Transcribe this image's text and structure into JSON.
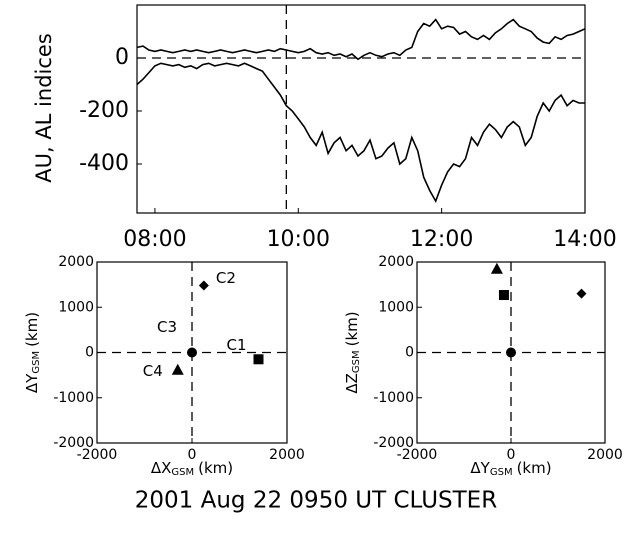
{
  "caption": "2001 Aug 22 0950 UT CLUSTER",
  "chart_data": [
    {
      "type": "line",
      "ylabel": "AU, AL indices",
      "xlim": [
        465,
        840
      ],
      "xticks": [
        {
          "value": 480,
          "label": "08:00"
        },
        {
          "value": 600,
          "label": "10:00"
        },
        {
          "value": 720,
          "label": "12:00"
        },
        {
          "value": 840,
          "label": "14:00"
        }
      ],
      "ylim": [
        -585,
        200
      ],
      "yticks": [
        -400,
        -200,
        0
      ],
      "hline": 0,
      "vline": 590,
      "x": [
        465,
        470,
        475,
        480,
        485,
        490,
        495,
        500,
        505,
        510,
        515,
        520,
        525,
        530,
        535,
        540,
        545,
        550,
        555,
        560,
        565,
        570,
        575,
        580,
        585,
        590,
        595,
        600,
        605,
        610,
        615,
        620,
        625,
        630,
        635,
        640,
        645,
        650,
        655,
        660,
        665,
        670,
        675,
        680,
        685,
        690,
        695,
        700,
        705,
        710,
        715,
        720,
        725,
        730,
        735,
        740,
        745,
        750,
        755,
        760,
        765,
        770,
        775,
        780,
        785,
        790,
        795,
        800,
        805,
        810,
        815,
        820,
        825,
        830,
        835,
        840
      ],
      "series": [
        {
          "color": "#000000",
          "values": [
            40,
            45,
            30,
            25,
            30,
            25,
            20,
            25,
            30,
            25,
            30,
            25,
            20,
            25,
            30,
            25,
            20,
            25,
            30,
            25,
            20,
            25,
            30,
            25,
            35,
            30,
            25,
            20,
            25,
            35,
            20,
            15,
            20,
            10,
            15,
            5,
            15,
            -5,
            10,
            20,
            10,
            5,
            15,
            20,
            10,
            30,
            40,
            100,
            130,
            120,
            145,
            110,
            120,
            115,
            90,
            100,
            80,
            70,
            85,
            70,
            95,
            110,
            130,
            145,
            120,
            110,
            100,
            75,
            60,
            55,
            80,
            70,
            85,
            90,
            100,
            110
          ]
        },
        {
          "color": "#000000",
          "values": [
            -100,
            -80,
            -55,
            -30,
            -20,
            -25,
            -30,
            -25,
            -35,
            -30,
            -40,
            -25,
            -20,
            -30,
            -25,
            -20,
            -25,
            -30,
            -20,
            -30,
            -40,
            -50,
            -80,
            -110,
            -140,
            -180,
            -200,
            -230,
            -260,
            -300,
            -330,
            -280,
            -360,
            -320,
            -300,
            -350,
            -330,
            -370,
            -350,
            -310,
            -380,
            -370,
            -340,
            -320,
            -400,
            -380,
            -300,
            -350,
            -450,
            -500,
            -540,
            -480,
            -430,
            -400,
            -410,
            -380,
            -300,
            -330,
            -280,
            -250,
            -270,
            -300,
            -260,
            -240,
            -260,
            -330,
            -300,
            -220,
            -170,
            -200,
            -160,
            -140,
            -180,
            -160,
            -170,
            -170
          ]
        }
      ]
    },
    {
      "type": "scatter",
      "xlabel": [
        "ΔX",
        "GSM",
        "(km)"
      ],
      "ylabel": [
        "ΔY",
        "GSM",
        "(km)"
      ],
      "xlim": [
        -2000,
        2000
      ],
      "xticks": [
        -2000,
        0,
        2000
      ],
      "ylim": [
        -2000,
        2000
      ],
      "yticks": [
        -2000,
        -1000,
        0,
        1000,
        2000
      ],
      "dashed_zero_lines": true,
      "point_labels": true,
      "series": [
        {
          "name": "C1",
          "marker": "square",
          "color": "#000000",
          "x": [
            1400
          ],
          "values": [
            -150
          ]
        },
        {
          "name": "C2",
          "marker": "diamond",
          "color": "#000000",
          "x": [
            250
          ],
          "values": [
            1480
          ]
        },
        {
          "name": "C3",
          "marker": "circle",
          "color": "#000000",
          "x": [
            0
          ],
          "values": [
            0
          ]
        },
        {
          "name": "C4",
          "marker": "triangle",
          "color": "#000000",
          "x": [
            -300
          ],
          "values": [
            -380
          ]
        }
      ]
    },
    {
      "type": "scatter",
      "xlabel": [
        "ΔY",
        "GSM",
        "(km)"
      ],
      "ylabel": [
        "ΔZ",
        "GSM",
        "(km)"
      ],
      "xlim": [
        -2000,
        2000
      ],
      "xticks": [
        -2000,
        0,
        2000
      ],
      "ylim": [
        -2000,
        2000
      ],
      "yticks": [
        -2000,
        -1000,
        0,
        1000,
        2000
      ],
      "dashed_zero_lines": true,
      "point_labels": false,
      "series": [
        {
          "marker": "square",
          "color": "#000000",
          "x": [
            -150
          ],
          "values": [
            1270
          ]
        },
        {
          "marker": "diamond",
          "color": "#000000",
          "x": [
            1500
          ],
          "values": [
            1300
          ]
        },
        {
          "marker": "circle",
          "color": "#000000",
          "x": [
            0
          ],
          "values": [
            0
          ]
        },
        {
          "marker": "triangle",
          "color": "#000000",
          "x": [
            -300
          ],
          "values": [
            1850
          ]
        }
      ]
    }
  ]
}
